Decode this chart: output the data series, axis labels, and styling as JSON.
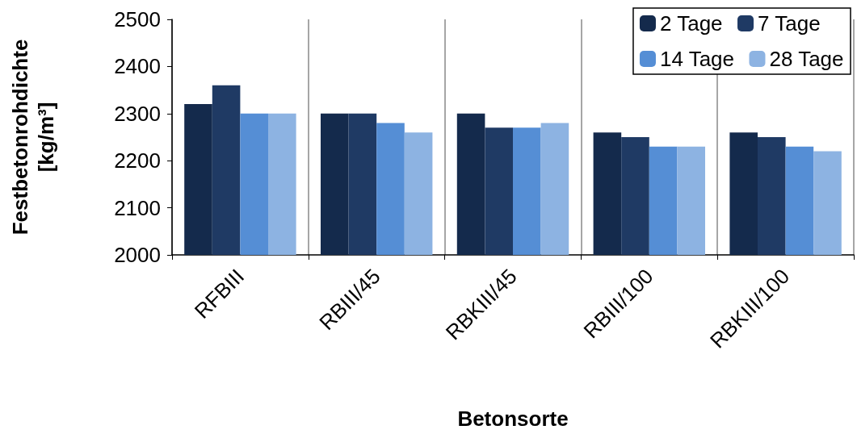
{
  "chart_data": {
    "type": "bar",
    "xlabel": "Betonsorte",
    "ylabel": "Festbetonrohdichte [kg/m³]",
    "categories": [
      "RFBIII",
      "RBIII/45",
      "RBKIII/45",
      "RBIII/100",
      "RBKIII/100"
    ],
    "series": [
      {
        "name": "2 Tage",
        "color": "#142a4c",
        "values": [
          2320,
          2300,
          2300,
          2260,
          2260
        ]
      },
      {
        "name": "7 Tage",
        "color": "#1f3a64",
        "values": [
          2360,
          2300,
          2270,
          2250,
          2250
        ]
      },
      {
        "name": "14 Tage",
        "color": "#558ed5",
        "values": [
          2300,
          2280,
          2270,
          2230,
          2230
        ]
      },
      {
        "name": "28 Tage",
        "color": "#8db3e2",
        "values": [
          2300,
          2260,
          2280,
          2230,
          2220
        ]
      }
    ],
    "ylim": [
      2000,
      2500
    ],
    "yticks": [
      2000,
      2100,
      2200,
      2300,
      2400,
      2500
    ],
    "grid": "x",
    "legend": "top right"
  }
}
